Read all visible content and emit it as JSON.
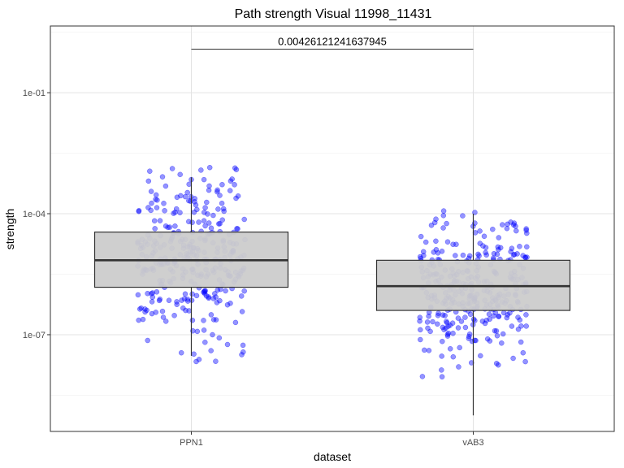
{
  "chart_data": {
    "type": "box",
    "title": "Path strength Visual 11998_11431",
    "xlabel": "dataset",
    "ylabel": "strength",
    "y_scale": "log10",
    "ylim": [
      4e-10,
      4.5
    ],
    "y_ticks": [
      {
        "value": 1e-07,
        "label": "1e-07"
      },
      {
        "value": 0.0001,
        "label": "1e-04"
      },
      {
        "value": 0.1,
        "label": "1e-01"
      }
    ],
    "categories": [
      "PPN1",
      "vAB3"
    ],
    "boxes": [
      {
        "category": "PPN1",
        "whisker_low": 3e-08,
        "q1": 1.5e-06,
        "median": 7e-06,
        "q3": 3.5e-05,
        "whisker_high": 0.0008
      },
      {
        "category": "vAB3",
        "whisker_low": 1e-09,
        "q1": 4e-07,
        "median": 1.6e-06,
        "q3": 7e-06,
        "whisker_high": 0.0001
      }
    ],
    "points_color": "#0000ff",
    "box_fill": "#cccccc",
    "grid": true,
    "annotation": {
      "text": "0.00426121241637945",
      "between": [
        "PPN1",
        "vAB3"
      ],
      "y": 1.2
    }
  }
}
